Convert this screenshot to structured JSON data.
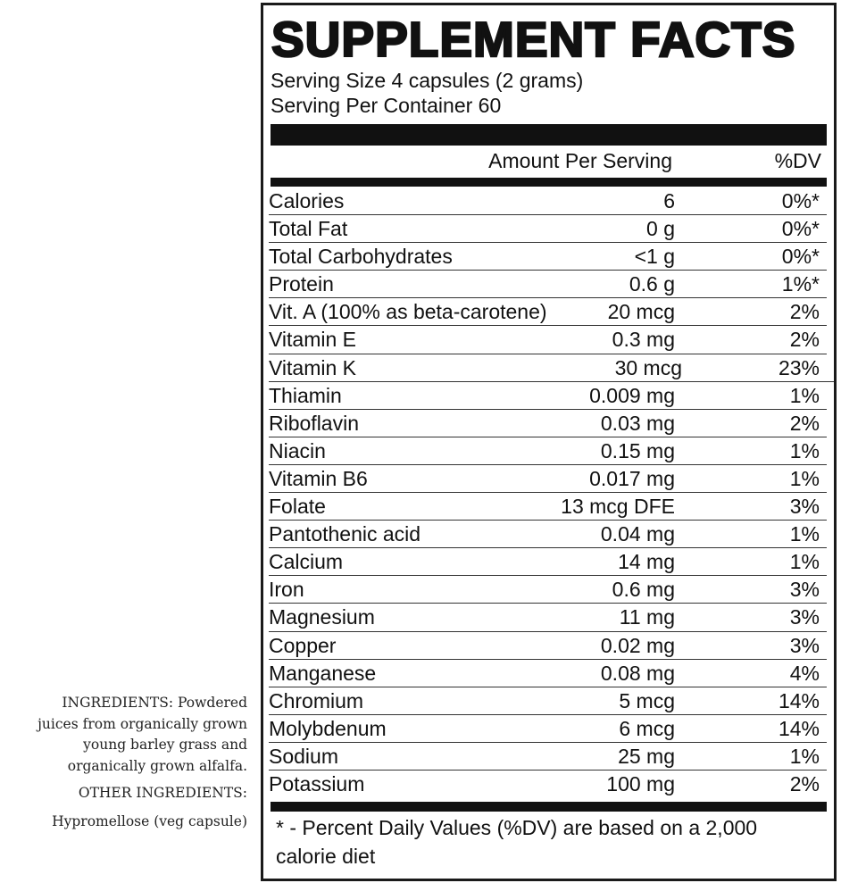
{
  "ingredients": {
    "text": [
      "INGREDIENTS: Powdered",
      "juices from organically grown",
      "young barley grass and",
      "organically grown alfalfa."
    ],
    "other_label": "OTHER INGREDIENTS:",
    "other_text": "Hypromellose (veg capsule)"
  },
  "panel": {
    "title": "SUPPLEMENT FACTS",
    "serving_size": "Serving Size 4 capsules (2 grams)",
    "servings_per_container": "Serving Per Container 60",
    "header_amount": "Amount Per Serving",
    "header_dv": "%DV",
    "rows": [
      {
        "name": "Calories",
        "amount": "6",
        "dv": "0%*"
      },
      {
        "name": "Total Fat",
        "amount": "0 g",
        "dv": "0%*"
      },
      {
        "name": "Total Carbohydrates",
        "amount": "<1 g",
        "dv": "0%*"
      },
      {
        "name": "Protein",
        "amount": "0.6 g",
        "dv": "1%*"
      },
      {
        "name": "Vit. A (100% as beta-carotene)",
        "amount": "20 mcg",
        "dv": "2%"
      },
      {
        "name": "Vitamin E",
        "amount": "0.3 mg",
        "dv": "2%"
      },
      {
        "name": "Vitamin K",
        "amount": "30 mcg",
        "dv": "23%"
      },
      {
        "name": "Thiamin",
        "amount": "0.009 mg",
        "dv": "1%"
      },
      {
        "name": "Riboflavin",
        "amount": "0.03 mg",
        "dv": "2%"
      },
      {
        "name": "Niacin",
        "amount": "0.15 mg",
        "dv": "1%"
      },
      {
        "name": "Vitamin B6",
        "amount": "0.017 mg",
        "dv": "1%"
      },
      {
        "name": "Folate",
        "amount": "13 mcg DFE",
        "dv": "3%"
      },
      {
        "name": "Pantothenic acid",
        "amount": "0.04 mg",
        "dv": "1%"
      },
      {
        "name": "Calcium",
        "amount": "14 mg",
        "dv": "1%"
      },
      {
        "name": "Iron",
        "amount": "0.6 mg",
        "dv": "3%"
      },
      {
        "name": "Magnesium",
        "amount": "11 mg",
        "dv": "3%"
      },
      {
        "name": "Copper",
        "amount": "0.02 mg",
        "dv": "3%"
      },
      {
        "name": "Manganese",
        "amount": "0.08 mg",
        "dv": "4%"
      },
      {
        "name": "Chromium",
        "amount": "5 mcg",
        "dv": "14%"
      },
      {
        "name": "Molybdenum",
        "amount": "6 mcg",
        "dv": "14%"
      },
      {
        "name": "Sodium",
        "amount": "25 mg",
        "dv": "1%"
      },
      {
        "name": "Potassium",
        "amount": "100 mg",
        "dv": "2%"
      }
    ],
    "footnote": "* - Percent Daily Values (%DV) are based on a 2,000 calorie diet"
  }
}
